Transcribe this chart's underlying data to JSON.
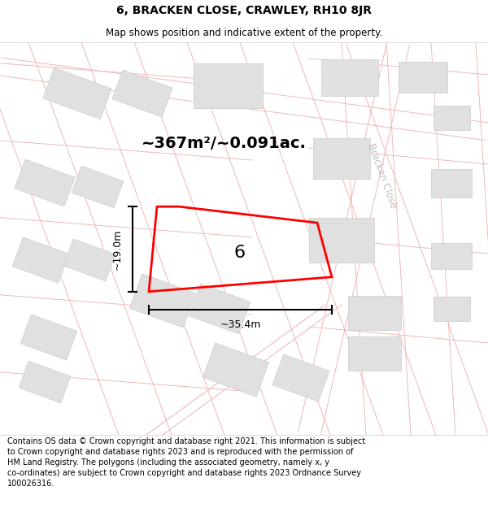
{
  "title": "6, BRACKEN CLOSE, CRAWLEY, RH10 8JR",
  "subtitle": "Map shows position and indicative extent of the property.",
  "footer": "Contains OS data © Crown copyright and database right 2021. This information is subject\nto Crown copyright and database rights 2023 and is reproduced with the permission of\nHM Land Registry. The polygons (including the associated geometry, namely x, y\nco-ordinates) are subject to Crown copyright and database rights 2023 Ordnance Survey\n100026316.",
  "area_text": "~367m²/~0.091ac.",
  "width_label": "~35.4m",
  "height_label": "~19.0m",
  "number_label": "6",
  "map_bg_color": "#ffffff",
  "plot_color": "#ff0000",
  "road_line_color": "#f0b8b8",
  "building_color": "#e0e0e0",
  "building_edge_color": "#cccccc",
  "road_label_color": "#c0c0c0",
  "title_fontsize": 10,
  "subtitle_fontsize": 8.5,
  "footer_fontsize": 7,
  "area_fontsize": 14,
  "number_fontsize": 16,
  "dim_fontsize": 9
}
